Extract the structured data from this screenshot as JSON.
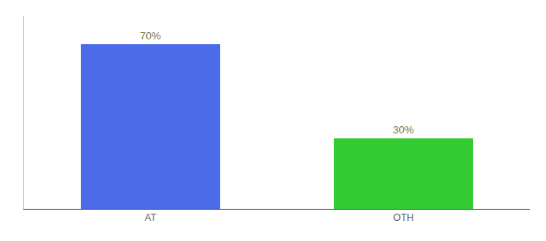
{
  "chart_data": {
    "type": "bar",
    "categories": [
      "AT",
      "OTH"
    ],
    "values": [
      70,
      30
    ],
    "value_labels": [
      "70%",
      "30%"
    ],
    "colors": [
      "#4B6BE8",
      "#33CC33"
    ],
    "ylim": [
      0,
      82
    ],
    "grid": false,
    "data_labels": true,
    "tick_labels": "x"
  }
}
